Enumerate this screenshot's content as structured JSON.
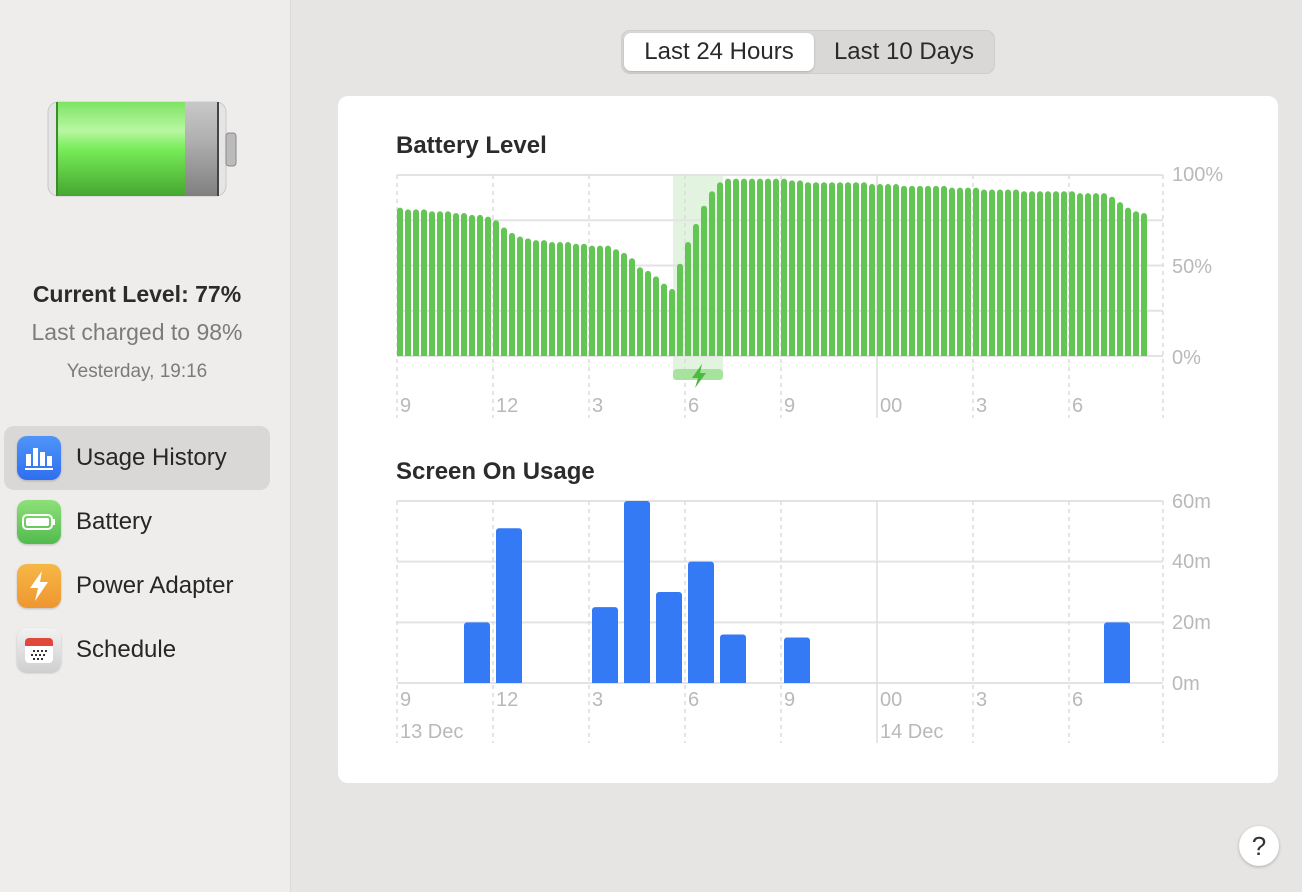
{
  "sidebar": {
    "battery_icon": "battery-full-icon",
    "current_level": "Current Level: 77%",
    "last_charged": "Last charged to 98%",
    "last_charged_time": "Yesterday, 19:16",
    "items": [
      {
        "label": "Usage History",
        "icon": "bar-chart-icon",
        "color": "#3478f6",
        "selected": true
      },
      {
        "label": "Battery",
        "icon": "battery-icon",
        "color": "#5fc55a",
        "selected": false
      },
      {
        "label": "Power Adapter",
        "icon": "bolt-icon",
        "color": "#f0a030",
        "selected": false
      },
      {
        "label": "Schedule",
        "icon": "calendar-icon",
        "color": "#e0e0e0",
        "selected": false
      }
    ]
  },
  "segmented": {
    "options": [
      "Last 24 Hours",
      "Last 10 Days"
    ],
    "selected": "Last 24 Hours"
  },
  "help_label": "?",
  "chart_data": [
    {
      "type": "bar",
      "title": "Battery Level",
      "color": "#62c554",
      "x_tick_labels": [
        "9",
        "12",
        "3",
        "6",
        "9",
        "00",
        "3",
        "6"
      ],
      "y_tick_labels": [
        "100%",
        "50%",
        "0%"
      ],
      "ylim": [
        0,
        100
      ],
      "interval": "15 min",
      "charging_marker_icon": "bolt-icon",
      "values": [
        82,
        81,
        81,
        81,
        80,
        80,
        80,
        79,
        79,
        78,
        78,
        77,
        75,
        71,
        68,
        66,
        65,
        64,
        64,
        63,
        63,
        63,
        62,
        62,
        61,
        61,
        61,
        59,
        57,
        54,
        49,
        47,
        44,
        40,
        37,
        51,
        63,
        73,
        83,
        91,
        96,
        98,
        98,
        98,
        98,
        98,
        98,
        98,
        98,
        97,
        97,
        96,
        96,
        96,
        96,
        96,
        96,
        96,
        96,
        95,
        95,
        95,
        95,
        94,
        94,
        94,
        94,
        94,
        94,
        93,
        93,
        93,
        93,
        92,
        92,
        92,
        92,
        92,
        91,
        91,
        91,
        91,
        91,
        91,
        91,
        90,
        90,
        90,
        90,
        88,
        85,
        82,
        80,
        79
      ]
    },
    {
      "type": "bar",
      "title": "Screen On Usage",
      "color": "#347af5",
      "x_tick_labels": [
        "9",
        "12",
        "3",
        "6",
        "9",
        "00",
        "3",
        "6"
      ],
      "date_labels": [
        "13 Dec",
        "14 Dec"
      ],
      "y_tick_labels": [
        "60m",
        "40m",
        "20m",
        "0m"
      ],
      "ylim": [
        0,
        60
      ],
      "interval": "1 hour",
      "values": [
        0,
        0,
        20,
        51,
        0,
        0,
        25,
        60,
        30,
        40,
        16,
        0,
        15,
        0,
        0,
        0,
        0,
        0,
        0,
        0,
        0,
        0,
        20,
        0
      ]
    }
  ]
}
